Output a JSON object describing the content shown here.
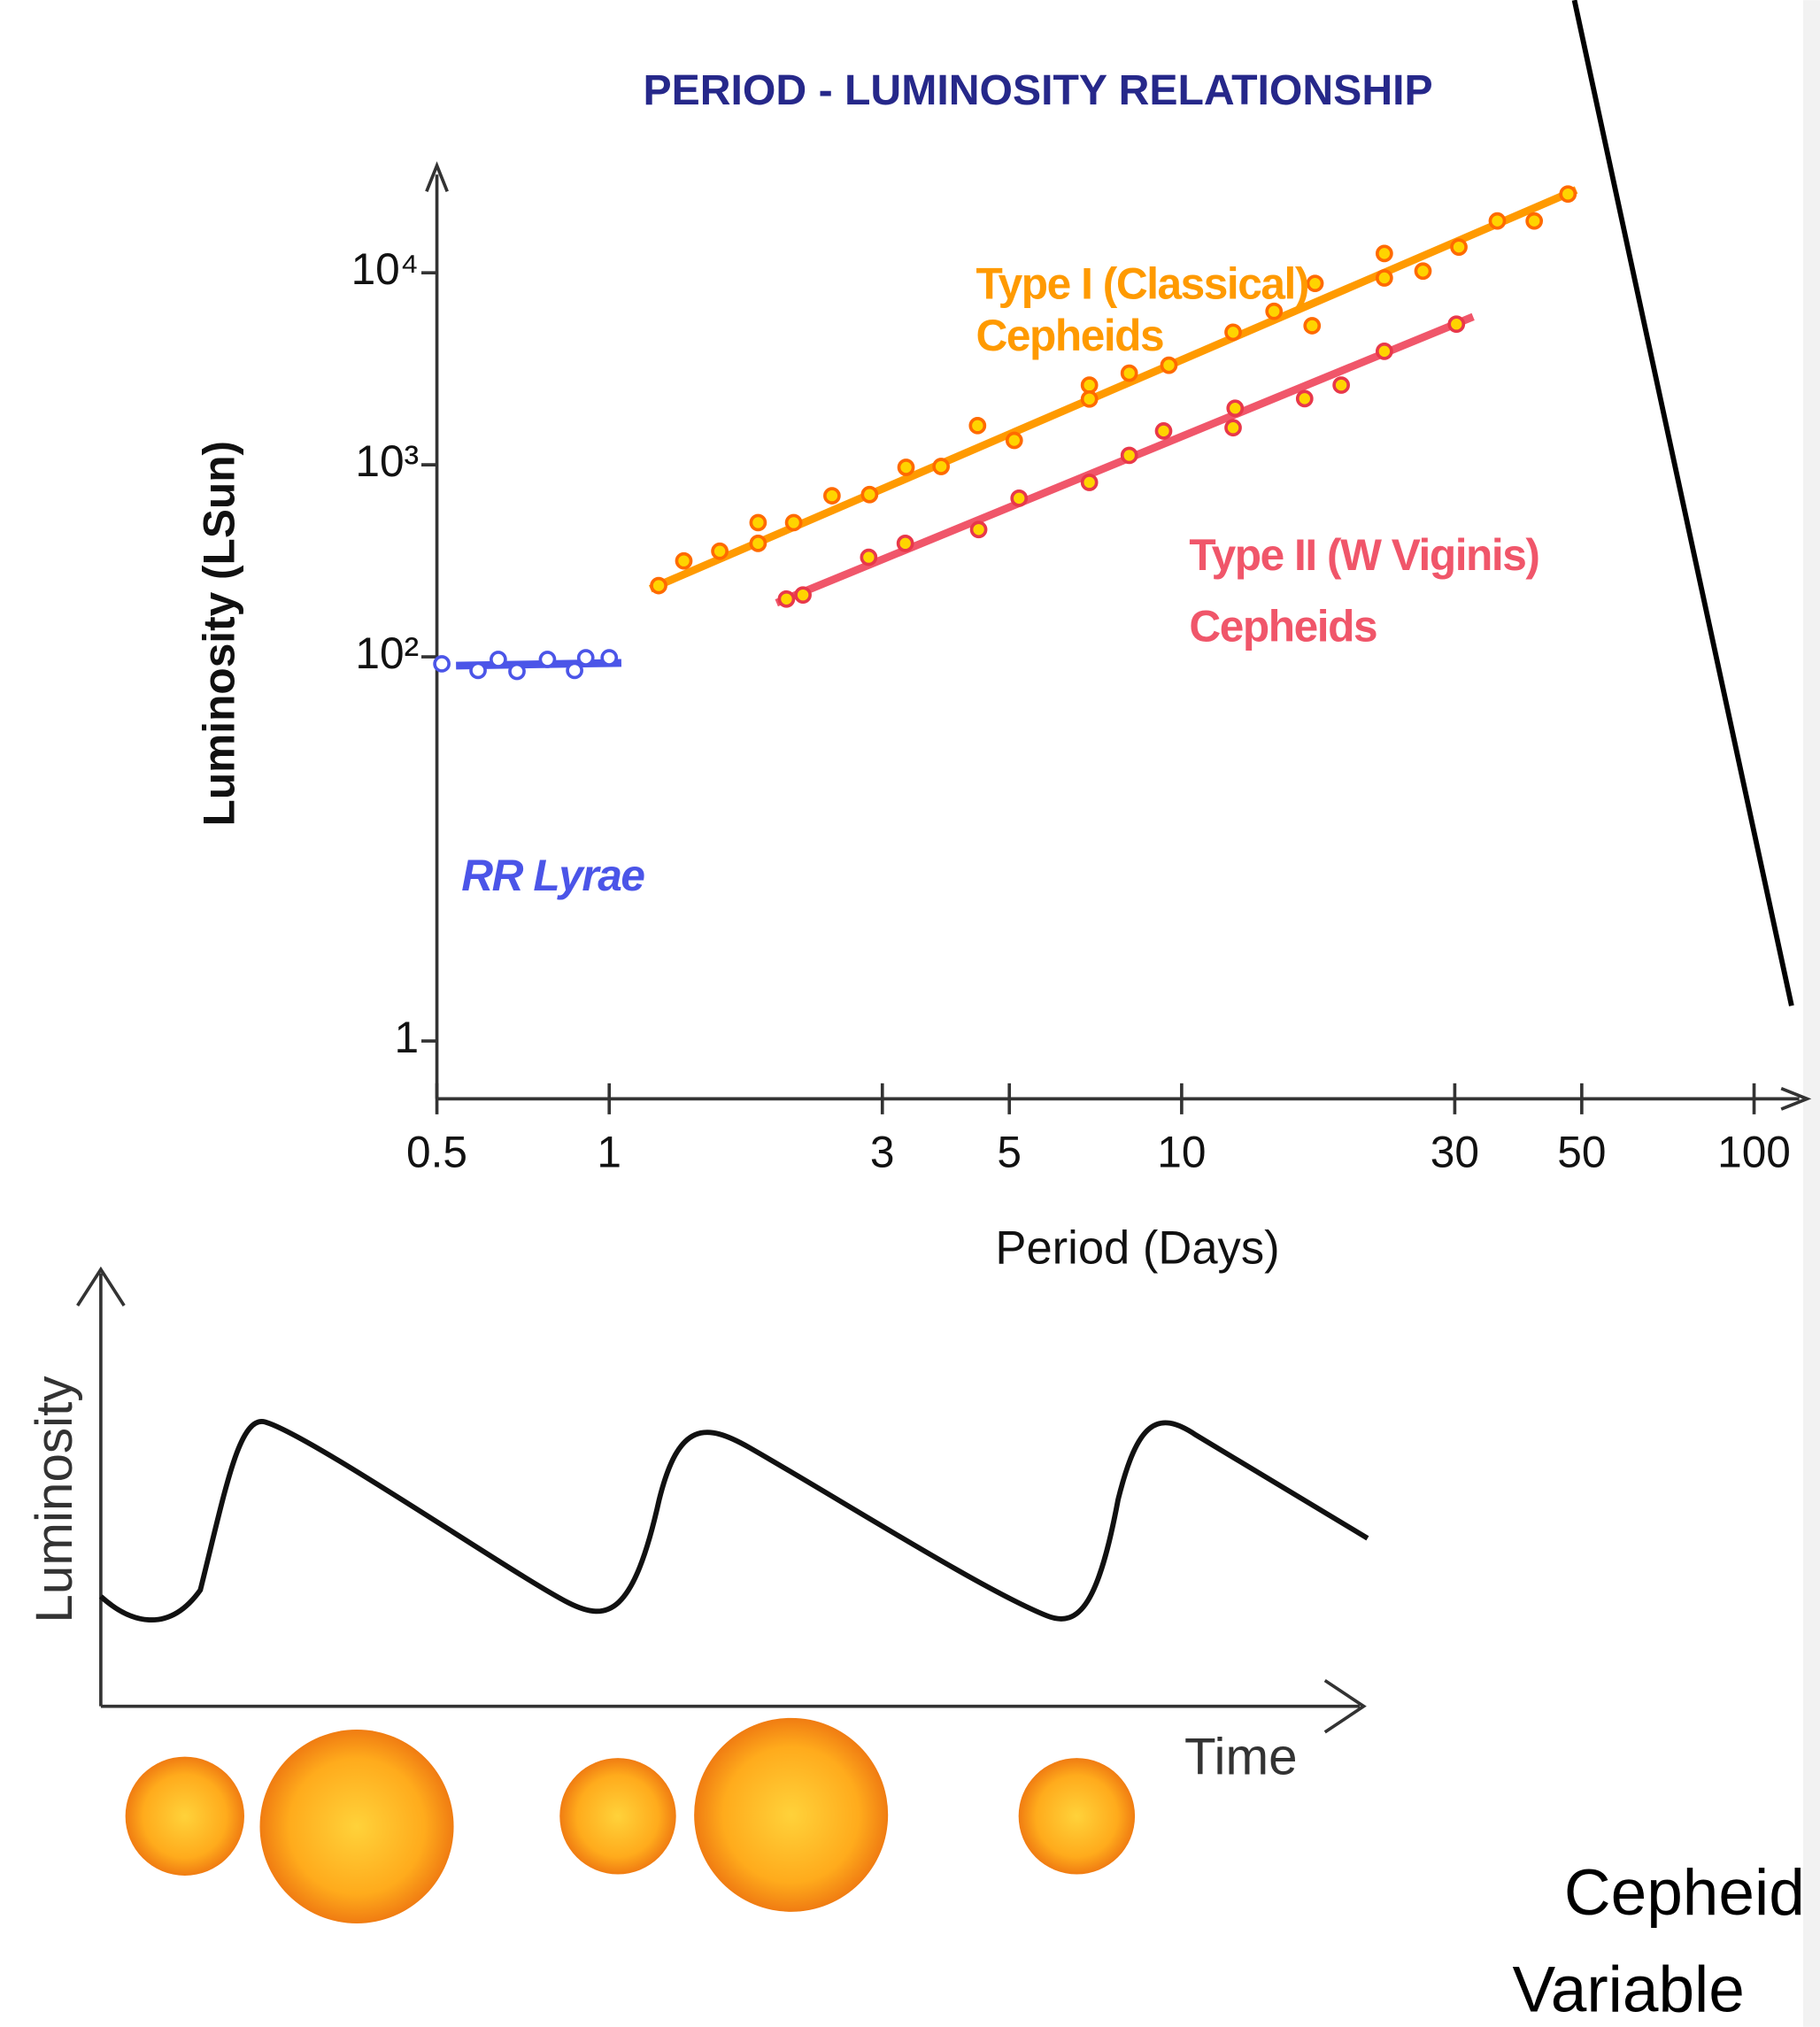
{
  "chart_data": {
    "type": "scatter",
    "title": "PERIOD - LUMINOSITY RELATIONSHIP",
    "xlabel": "Period (Days)",
    "ylabel": "Luminosity (LSun)",
    "xscale": "log",
    "yscale": "log",
    "xlim": [
      0.5,
      100
    ],
    "ylim": [
      0.5,
      30000
    ],
    "xticks": [
      0.5,
      1,
      3,
      5,
      10,
      30,
      50,
      100
    ],
    "yticks": [
      1,
      {
        "value": 100,
        "label": "10²"
      },
      {
        "value": 1000,
        "label": "10³"
      },
      {
        "value": 10000,
        "label": "10⁴"
      }
    ],
    "grid": false,
    "series": [
      {
        "name": "RR Lyrae",
        "color": "#4b55e8",
        "x": [
          0.51,
          0.59,
          0.64,
          0.69,
          0.78,
          0.87,
          0.91,
          1.0
        ],
        "values": [
          92,
          85,
          97,
          84,
          97,
          85,
          99,
          99
        ],
        "fit_x": [
          0.54,
          1.05
        ],
        "fit_values": [
          90,
          93
        ]
      },
      {
        "name": "Type I (Classical) Cepheids",
        "color": "#ff9a00",
        "x": [
          1.22,
          1.35,
          1.56,
          1.82,
          1.82,
          2.1,
          2.45,
          2.85,
          3.3,
          3.8,
          4.4,
          5.1,
          6.9,
          6.9,
          8.1,
          9.5,
          12.3,
          14.5,
          16.9,
          17.1,
          22.6,
          22.6,
          26.4,
          30.5,
          35.6,
          41.3,
          47.3
        ],
        "values": [
          235,
          316,
          355,
          500,
          390,
          500,
          690,
          700,
          970,
          980,
          1600,
          1340,
          2600,
          2200,
          3000,
          3300,
          4900,
          6300,
          5300,
          8800,
          12600,
          9400,
          10200,
          13600,
          18600,
          18600,
          25700
        ],
        "fit_x": [
          1.18,
          48.9
        ],
        "fit_values": [
          226,
          27000
        ]
      },
      {
        "name": "Type II (W Viginis) Cepheids",
        "color": "#f0566a",
        "x": [
          2.04,
          2.18,
          2.84,
          3.29,
          4.42,
          5.2,
          6.9,
          8.1,
          9.3,
          12.3,
          12.4,
          16.4,
          19.0,
          22.6,
          30.2
        ],
        "values": [
          200,
          210,
          330,
          390,
          460,
          670,
          810,
          1120,
          1500,
          1560,
          1970,
          2210,
          2600,
          3900,
          5400
        ],
        "fit_x": [
          1.96,
          32.3
        ],
        "fit_values": [
          191,
          5900
        ]
      }
    ]
  },
  "diagram": {
    "y_label": "Luminosity",
    "x_label": "Time"
  },
  "slide_text": {
    "lines": [
      "Cepheid",
      "Variable"
    ]
  }
}
